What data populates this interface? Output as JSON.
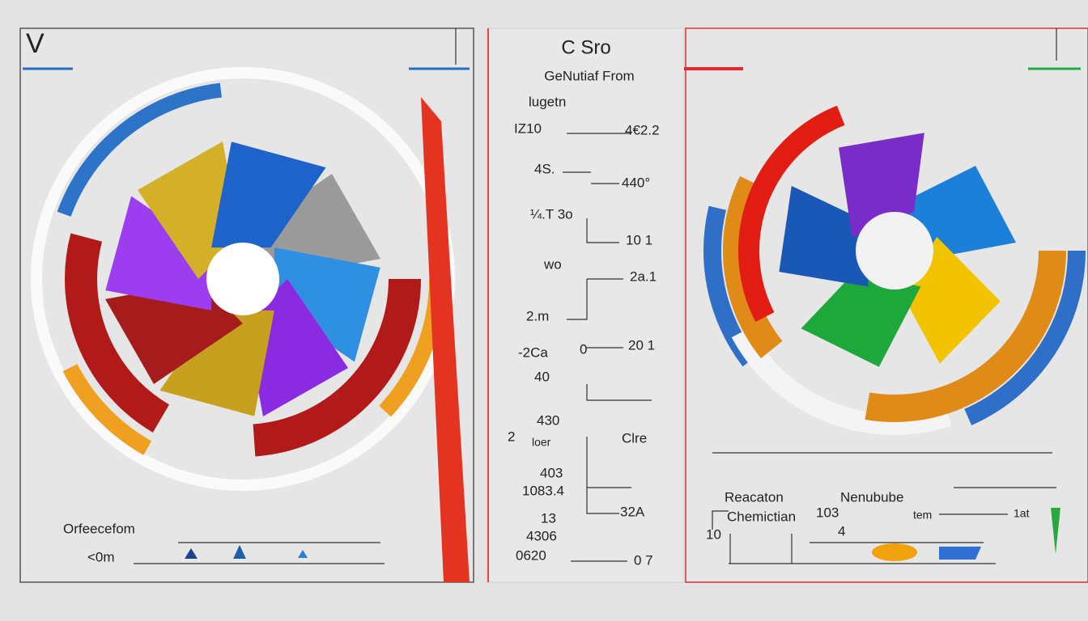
{
  "left_panel": {
    "corner_label": "V",
    "caption": "Orfeecefom",
    "scale_label": "<0m"
  },
  "center_panel": {
    "title": "C Sro",
    "subtitle": "GeNutiaf From",
    "labels": [
      "lugetn",
      "IZ10",
      "4€2.2",
      "4S.",
      "440°",
      "¼.T 3o",
      "10 1",
      "wo",
      "2a.1",
      "2.m",
      "-2Ca",
      "0",
      "20 1",
      "40",
      "430",
      "2",
      "loer",
      "Clre",
      "403",
      "1083.4",
      "13",
      "32A",
      "4306",
      "0620",
      "0 7"
    ]
  },
  "right_panel": {
    "labels": [
      "Reacaton",
      "Nenubube",
      "Chemictian",
      "103",
      "tem",
      "1at",
      "10",
      "4"
    ]
  }
}
